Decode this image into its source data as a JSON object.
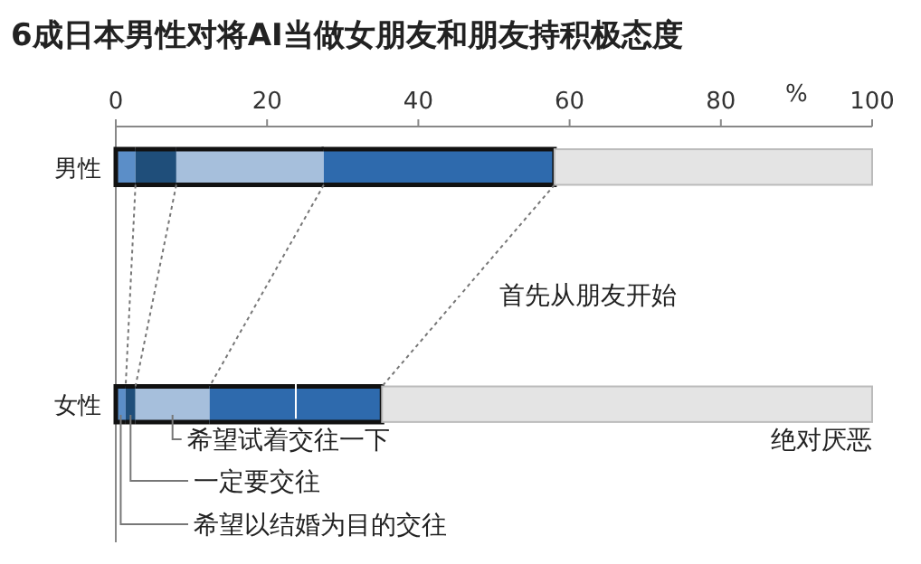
{
  "chart_data": {
    "type": "bar",
    "orientation": "horizontal",
    "stacked": true,
    "title": "6成日本男性对将AI当做女朋友和朋友持积极态度",
    "xlabel": "%",
    "categories": [
      "男性",
      "女性"
    ],
    "series": [
      {
        "name": "希望以结婚为目的交往",
        "color": "#5b8ec8",
        "values": [
          2.6,
          1.3
        ]
      },
      {
        "name": "一定要交往",
        "color": "#1f4e7a",
        "values": [
          5.4,
          1.3
        ]
      },
      {
        "name": "希望试着交往一下",
        "color": "#a6bfdc",
        "values": [
          19.5,
          9.8
        ]
      },
      {
        "name": "首先从朋友开始",
        "color": "#2e6aad",
        "values": [
          30.5,
          22.8
        ]
      },
      {
        "name": "绝对厌恶",
        "color": "#e4e4e4",
        "values": [
          42,
          64.8
        ]
      }
    ],
    "xlim": [
      0,
      100
    ],
    "xticks": [
      0,
      20,
      40,
      60,
      80,
      100
    ]
  }
}
